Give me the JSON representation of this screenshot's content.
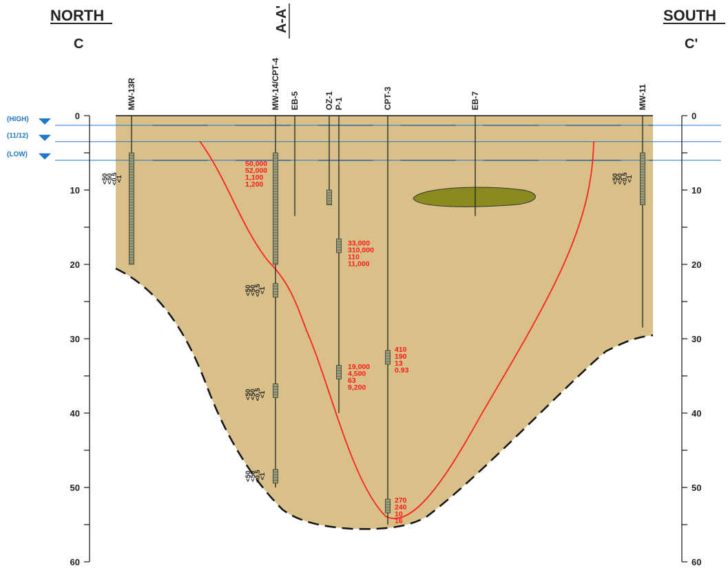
{
  "header": {
    "north": "NORTH",
    "south": "SOUTH",
    "start_label": "C",
    "end_label": "C'",
    "intersect_label": "A-A'"
  },
  "depth_axis": {
    "ticks": [
      "0",
      "10",
      "20",
      "30",
      "40",
      "50",
      "60"
    ]
  },
  "water_levels": [
    {
      "label": "(HIGH)",
      "depth": 1.3
    },
    {
      "label": "(11/12)",
      "depth": 3.5
    },
    {
      "label": "(LOW)",
      "depth": 6.0
    }
  ],
  "wells": [
    {
      "label": "MW-13R",
      "bottom": 20,
      "screen": [
        5,
        20
      ]
    },
    {
      "label": "MW-14/CPT-4",
      "bottom": 50,
      "screen": [
        5,
        20
      ]
    },
    {
      "label": "EB-5",
      "bottom": 13.5
    },
    {
      "label": "OZ-1",
      "bottom": 12,
      "screen": [
        10,
        12
      ]
    },
    {
      "label": "P-1",
      "bottom": 40
    },
    {
      "label": "CPT-3",
      "bottom": 55
    },
    {
      "label": "EB-7",
      "bottom": 13.5
    },
    {
      "label": "MW-11",
      "bottom": 28.5,
      "screen": [
        5,
        12
      ]
    }
  ],
  "concentrations": [
    {
      "values": [
        "50,000",
        "52,000",
        "1,100",
        "1,200"
      ],
      "depth": 7.5
    },
    {
      "values": [
        "33,000",
        "310,000",
        "110",
        "11,000"
      ],
      "depth": 18.2
    },
    {
      "values": [
        "19,000",
        "4,500",
        "63",
        "9,200"
      ],
      "depth": 34.8
    },
    {
      "values": [
        "410",
        "190",
        "13",
        "0.93"
      ],
      "depth": 32.5
    },
    {
      "values": [
        "270",
        "240",
        "10",
        "16"
      ],
      "depth": 52.8
    }
  ],
  "less_than_groups": [
    {
      "values": [
        "50",
        "50",
        "0.5",
        "1"
      ],
      "depth": 8.5
    },
    {
      "values": [
        "50",
        "50",
        "0.5",
        "1"
      ],
      "depth": 23.5
    },
    {
      "values": [
        "50",
        "50",
        "0.5",
        "1"
      ],
      "depth": 37.5
    },
    {
      "values": [
        "50",
        "50",
        "0.5",
        "1"
      ],
      "depth": 48.5
    },
    {
      "values": [
        "50",
        "50",
        "0.5",
        "1"
      ],
      "depth": 8.5
    }
  ],
  "colors": {
    "fill": "#d8c088",
    "lens": "#8a8a20",
    "plume": "#ff2020",
    "water": "#1f78c8"
  }
}
